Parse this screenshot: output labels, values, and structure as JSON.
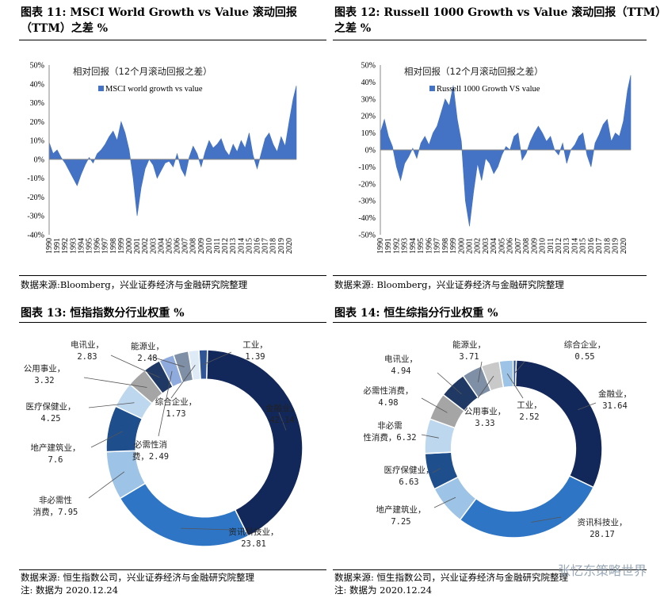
{
  "panels": {
    "p11": {
      "title_line1": "图表 11:  MSCI World Growth vs Value  滚动回报",
      "title_line2": "（TTM）之差 %",
      "source": "数据来源:Bloomberg，兴业证券经济与金融研究院整理"
    },
    "p12": {
      "title_line1": "图表 12:  Russell 1000 Growth vs Value  滚动回报（TTM）",
      "title_line2": "之差 %",
      "source": "数据来源: Bloomberg，兴业证券经济与金融研究院整理"
    },
    "p13": {
      "title": "图表 13:  恒指指数分行业权重 %",
      "source": "数据来源:  恒生指数公司，兴业证券经济与金融研究院整理",
      "note": "注:  数据为 2020.12.24"
    },
    "p14": {
      "title": "图表 14:  恒生综指分行业权重 %",
      "source": "数据来源:  恒生指数公司，兴业证券经济与金融研究院整理",
      "note": "注:  数据为 2020.12.24"
    }
  },
  "watermark": "张忆东策略世界",
  "chart_data": [
    {
      "type": "area",
      "annotation": "相对回报（12个月滚动回报之差）",
      "legend": "MSCI world growth vs value",
      "legend_position": "top-left",
      "color": "#4472C4",
      "ylim": [
        -40,
        50
      ],
      "yticks": [
        "50%",
        "40%",
        "30%",
        "20%",
        "10%",
        "0%",
        "-10%",
        "-20%",
        "-30%",
        "-40%"
      ],
      "xticks": [
        "1990",
        "1991",
        "1992",
        "1993",
        "1994",
        "1995",
        "1996",
        "1997",
        "1998",
        "1999",
        "2000",
        "2001",
        "2002",
        "2003",
        "2004",
        "2005",
        "2006",
        "2007",
        "2008",
        "2009",
        "2010",
        "2011",
        "2012",
        "2013",
        "2014",
        "2015",
        "2016",
        "2017",
        "2018",
        "2019",
        "2020"
      ],
      "x": [
        1990.0,
        1990.5,
        1991.0,
        1991.5,
        1992.0,
        1992.5,
        1993.0,
        1993.5,
        1994.0,
        1994.5,
        1995.0,
        1995.5,
        1996.0,
        1996.5,
        1997.0,
        1997.5,
        1998.0,
        1998.5,
        1999.0,
        1999.5,
        2000.0,
        2000.5,
        2001.0,
        2001.5,
        2002.0,
        2002.5,
        2003.0,
        2003.5,
        2004.0,
        2004.5,
        2005.0,
        2005.5,
        2006.0,
        2006.5,
        2007.0,
        2007.5,
        2008.0,
        2008.5,
        2009.0,
        2009.5,
        2010.0,
        2010.5,
        2011.0,
        2011.5,
        2012.0,
        2012.5,
        2013.0,
        2013.5,
        2014.0,
        2014.5,
        2015.0,
        2015.5,
        2016.0,
        2016.5,
        2017.0,
        2017.5,
        2018.0,
        2018.5,
        2019.0,
        2019.5,
        2020.0,
        2020.5,
        2020.9
      ],
      "values": [
        9,
        3,
        5,
        1,
        -2,
        -6,
        -10,
        -14,
        -8,
        -3,
        1,
        -2,
        3,
        5,
        8,
        12,
        15,
        10,
        20,
        14,
        5,
        -10,
        -30,
        -15,
        -5,
        0,
        -3,
        -10,
        -6,
        -2,
        -1,
        -4,
        3,
        -5,
        -9,
        1,
        7,
        3,
        -4,
        4,
        10,
        6,
        8,
        11,
        5,
        2,
        8,
        4,
        10,
        6,
        14,
        2,
        -5,
        3,
        11,
        14,
        8,
        4,
        12,
        7,
        20,
        32,
        39
      ]
    },
    {
      "type": "area",
      "annotation": "相对回报（12个月滚动回报之差）",
      "legend": "Russell 1000 Growth VS value",
      "legend_position": "top-left",
      "color": "#4472C4",
      "ylim": [
        -50,
        50
      ],
      "yticks": [
        "50%",
        "40%",
        "30%",
        "20%",
        "10%",
        "0%",
        "-10%",
        "-20%",
        "-30%",
        "-40%",
        "-50%"
      ],
      "xticks": [
        "1990",
        "1991",
        "1992",
        "1993",
        "1994",
        "1995",
        "1996",
        "1997",
        "1998",
        "1999",
        "2000",
        "2001",
        "2002",
        "2003",
        "2004",
        "2005",
        "2006",
        "2007",
        "2008",
        "2009",
        "2010",
        "2011",
        "2012",
        "2013",
        "2014",
        "2015",
        "2016",
        "2017",
        "2018",
        "2019",
        "2020"
      ],
      "x": [
        1990.0,
        1990.5,
        1991.0,
        1991.5,
        1992.0,
        1992.5,
        1993.0,
        1993.5,
        1994.0,
        1994.5,
        1995.0,
        1995.5,
        1996.0,
        1996.5,
        1997.0,
        1997.5,
        1998.0,
        1998.5,
        1999.0,
        1999.5,
        2000.0,
        2000.5,
        2001.0,
        2001.5,
        2002.0,
        2002.5,
        2003.0,
        2003.5,
        2004.0,
        2004.5,
        2005.0,
        2005.5,
        2006.0,
        2006.5,
        2007.0,
        2007.5,
        2008.0,
        2008.5,
        2009.0,
        2009.5,
        2010.0,
        2010.5,
        2011.0,
        2011.5,
        2012.0,
        2012.5,
        2013.0,
        2013.5,
        2014.0,
        2014.5,
        2015.0,
        2015.5,
        2016.0,
        2016.5,
        2017.0,
        2017.5,
        2018.0,
        2018.5,
        2019.0,
        2019.5,
        2020.0,
        2020.5,
        2020.9
      ],
      "values": [
        10,
        18,
        8,
        2,
        -10,
        -18,
        -8,
        -4,
        1,
        -5,
        4,
        8,
        3,
        10,
        14,
        22,
        30,
        26,
        38,
        18,
        5,
        -30,
        -45,
        -25,
        -8,
        -18,
        -5,
        -8,
        -14,
        -10,
        -3,
        2,
        0,
        8,
        10,
        -6,
        -2,
        5,
        10,
        14,
        10,
        5,
        8,
        0,
        -3,
        4,
        -8,
        0,
        3,
        8,
        10,
        -3,
        -10,
        4,
        9,
        15,
        18,
        5,
        10,
        8,
        17,
        35,
        44
      ]
    },
    {
      "type": "pie",
      "donut": true,
      "labels": [
        "金融业",
        "资讯科技业",
        "非必需性消费",
        "地产建筑业",
        "医疗保健业",
        "公用事业",
        "电讯业",
        "能源业",
        "综合企业",
        "必需性消费",
        "工业"
      ],
      "values": [
        42.14,
        23.81,
        7.95,
        7.6,
        4.25,
        3.32,
        2.83,
        2.48,
        1.73,
        2.49,
        1.39
      ],
      "value_labels": [
        "42.14",
        "23.81",
        "7.95",
        "7.6",
        "4.25",
        "3.32",
        "2.83",
        "2.48",
        "1.73",
        "2.49",
        "1.39"
      ],
      "colors": [
        "#12275A",
        "#2E75C5",
        "#9DC3E6",
        "#1F4E8C",
        "#BDD7EE",
        "#A5A5A5",
        "#1F3864",
        "#7F8FA6",
        "#DEEBF7",
        "#8FAADC",
        "#2F5597"
      ],
      "order": [
        0,
        1,
        2,
        3,
        4,
        5,
        6,
        9,
        7,
        8,
        10
      ]
    },
    {
      "type": "pie",
      "donut": true,
      "labels": [
        "金融业",
        "资讯科技业",
        "地产建筑业",
        "医疗保健业",
        "非必需性消费",
        "必需性消费",
        "电讯业",
        "公用事业",
        "能源业",
        "工业",
        "综合企业"
      ],
      "values": [
        31.64,
        28.17,
        7.25,
        6.63,
        6.32,
        4.98,
        4.94,
        3.33,
        3.71,
        2.52,
        0.55
      ],
      "value_labels": [
        "31.64",
        "28.17",
        "7.25",
        "6.63",
        "6.32",
        "4.98",
        "4.94",
        "3.33",
        "3.71",
        "2.52",
        "0.55"
      ],
      "colors": [
        "#12275A",
        "#2E75C5",
        "#9DC3E6",
        "#1F4E8C",
        "#BDD7EE",
        "#A5A5A5",
        "#1F3864",
        "#C9C9C9",
        "#7F8FA6",
        "#9DC3E6",
        "#2F5597"
      ],
      "order": [
        0,
        1,
        2,
        3,
        4,
        5,
        6,
        8,
        7,
        9,
        10
      ]
    }
  ]
}
